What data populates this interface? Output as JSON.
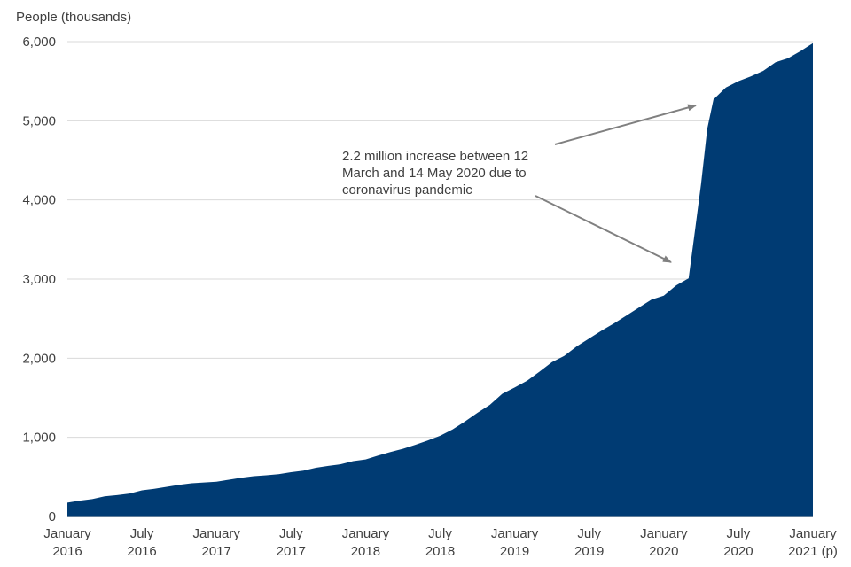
{
  "chart_data": {
    "type": "area",
    "ylabel": "People (thousands)",
    "ylim": [
      0,
      6000
    ],
    "yticks": [
      "0",
      "1,000",
      "2,000",
      "3,000",
      "4,000",
      "5,000",
      "6,000"
    ],
    "ytick_values": [
      0,
      1000,
      2000,
      3000,
      4000,
      5000,
      6000
    ],
    "x_ticks": [
      {
        "line1": "January",
        "line2": "2016"
      },
      {
        "line1": "July",
        "line2": "2016"
      },
      {
        "line1": "January",
        "line2": "2017"
      },
      {
        "line1": "July",
        "line2": "2017"
      },
      {
        "line1": "January",
        "line2": "2018"
      },
      {
        "line1": "July",
        "line2": "2018"
      },
      {
        "line1": "January",
        "line2": "2019"
      },
      {
        "line1": "July",
        "line2": "2019"
      },
      {
        "line1": "January",
        "line2": "2020"
      },
      {
        "line1": "July",
        "line2": "2020"
      },
      {
        "line1": "January",
        "line2": "2021 (p)"
      }
    ],
    "x_tick_months": [
      0,
      6,
      12,
      18,
      24,
      30,
      36,
      42,
      48,
      54,
      60
    ],
    "series": [
      {
        "name": "People",
        "color": "#003B73",
        "x_months": [
          0,
          1,
          2,
          3,
          4,
          5,
          6,
          7,
          8,
          9,
          10,
          11,
          12,
          13,
          14,
          15,
          16,
          17,
          18,
          19,
          20,
          21,
          22,
          23,
          24,
          25,
          26,
          27,
          28,
          29,
          30,
          31,
          32,
          33,
          34,
          35,
          36,
          37,
          38,
          39,
          40,
          41,
          42,
          43,
          44,
          45,
          46,
          47,
          48,
          49,
          50,
          50.5,
          51,
          51.5,
          52,
          53,
          54,
          55,
          56,
          57,
          58,
          59,
          60
        ],
        "values": [
          175,
          200,
          220,
          255,
          270,
          290,
          330,
          350,
          375,
          400,
          420,
          430,
          440,
          465,
          490,
          510,
          520,
          535,
          560,
          580,
          615,
          640,
          660,
          700,
          720,
          770,
          815,
          855,
          905,
          960,
          1020,
          1100,
          1200,
          1310,
          1410,
          1550,
          1630,
          1715,
          1830,
          1950,
          2030,
          2150,
          2250,
          2350,
          2440,
          2540,
          2640,
          2740,
          2790,
          2920,
          3010,
          3600,
          4200,
          4900,
          5270,
          5420,
          5500,
          5560,
          5630,
          5740,
          5790,
          5880,
          5980
        ]
      }
    ],
    "annotation": {
      "lines": [
        "2.2 million increase between 12",
        "March and 14 May 2020 due to",
        "coronavirus pandemic"
      ]
    }
  }
}
